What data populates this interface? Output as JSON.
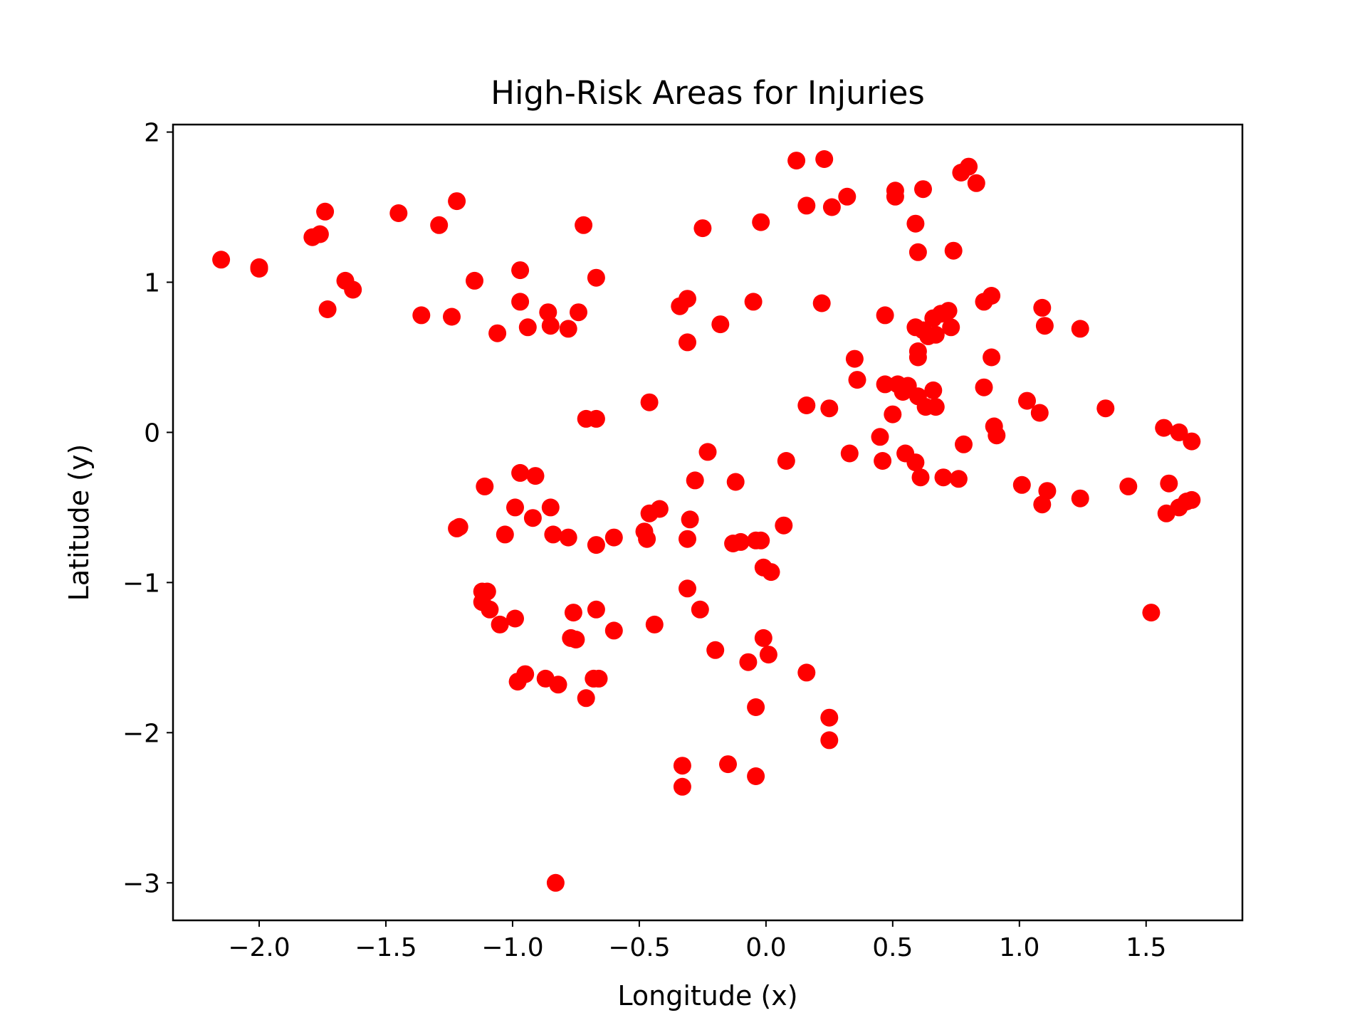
{
  "chart_data": {
    "type": "scatter",
    "title": "High-Risk Areas for Injuries",
    "xlabel": "Longitude (x)",
    "ylabel": "Latitude (y)",
    "xlim": [
      -2.34,
      1.88
    ],
    "ylim": [
      -3.25,
      2.05
    ],
    "xticks": [
      -2.0,
      -1.5,
      -1.0,
      -0.5,
      0.0,
      0.5,
      1.0,
      1.5
    ],
    "xtick_labels": [
      "−2.0",
      "−1.5",
      "−1.0",
      "−0.5",
      "0.0",
      "0.5",
      "1.0",
      "1.5"
    ],
    "yticks": [
      2,
      1,
      0,
      -1,
      -2,
      -3
    ],
    "ytick_labels": [
      "2",
      "1",
      "0",
      "−1",
      "−2",
      "−3"
    ],
    "grid": false,
    "marker_color": "#ff0000",
    "points": [
      [
        -2.15,
        1.15
      ],
      [
        -2.0,
        1.1
      ],
      [
        -2.0,
        1.09
      ],
      [
        -1.79,
        1.3
      ],
      [
        -1.76,
        1.32
      ],
      [
        -1.74,
        1.47
      ],
      [
        -1.73,
        0.82
      ],
      [
        -1.66,
        1.01
      ],
      [
        -1.63,
        0.95
      ],
      [
        -1.45,
        1.46
      ],
      [
        -1.36,
        0.78
      ],
      [
        -1.29,
        1.38
      ],
      [
        -1.24,
        0.77
      ],
      [
        -1.22,
        1.54
      ],
      [
        -1.15,
        1.01
      ],
      [
        -1.06,
        0.66
      ],
      [
        -0.97,
        1.08
      ],
      [
        -0.97,
        0.87
      ],
      [
        -0.94,
        0.7
      ],
      [
        -0.86,
        0.8
      ],
      [
        -0.85,
        0.71
      ],
      [
        -0.78,
        0.69
      ],
      [
        -0.74,
        0.8
      ],
      [
        -0.72,
        1.38
      ],
      [
        -0.67,
        1.03
      ],
      [
        -0.71,
        0.09
      ],
      [
        -0.67,
        0.09
      ],
      [
        -0.46,
        0.2
      ],
      [
        -0.34,
        0.84
      ],
      [
        -0.31,
        0.89
      ],
      [
        -0.31,
        0.6
      ],
      [
        -0.25,
        1.36
      ],
      [
        -0.18,
        0.72
      ],
      [
        -0.05,
        0.87
      ],
      [
        -0.02,
        1.4
      ],
      [
        0.12,
        1.81
      ],
      [
        0.16,
        1.51
      ],
      [
        0.23,
        1.82
      ],
      [
        0.26,
        1.5
      ],
      [
        0.32,
        1.57
      ],
      [
        0.22,
        0.86
      ],
      [
        0.51,
        1.61
      ],
      [
        0.51,
        1.57
      ],
      [
        0.62,
        1.62
      ],
      [
        0.59,
        1.39
      ],
      [
        0.6,
        1.2
      ],
      [
        0.74,
        1.21
      ],
      [
        0.77,
        1.73
      ],
      [
        0.8,
        1.77
      ],
      [
        0.83,
        1.66
      ],
      [
        0.47,
        0.78
      ],
      [
        0.59,
        0.7
      ],
      [
        0.62,
        0.68
      ],
      [
        0.66,
        0.76
      ],
      [
        0.69,
        0.79
      ],
      [
        0.72,
        0.81
      ],
      [
        0.64,
        0.64
      ],
      [
        0.67,
        0.65
      ],
      [
        0.73,
        0.7
      ],
      [
        0.6,
        0.54
      ],
      [
        0.6,
        0.5
      ],
      [
        0.86,
        0.87
      ],
      [
        0.89,
        0.91
      ],
      [
        1.09,
        0.83
      ],
      [
        1.1,
        0.71
      ],
      [
        1.24,
        0.69
      ],
      [
        0.35,
        0.49
      ],
      [
        0.36,
        0.35
      ],
      [
        0.47,
        0.32
      ],
      [
        0.52,
        0.32
      ],
      [
        0.54,
        0.27
      ],
      [
        0.56,
        0.31
      ],
      [
        0.6,
        0.24
      ],
      [
        0.63,
        0.17
      ],
      [
        0.66,
        0.28
      ],
      [
        0.67,
        0.17
      ],
      [
        0.5,
        0.12
      ],
      [
        0.16,
        0.18
      ],
      [
        0.25,
        0.16
      ],
      [
        0.86,
        0.3
      ],
      [
        0.89,
        0.5
      ],
      [
        1.03,
        0.21
      ],
      [
        1.08,
        0.13
      ],
      [
        1.34,
        0.16
      ],
      [
        0.9,
        0.04
      ],
      [
        0.91,
        -0.02
      ],
      [
        0.78,
        -0.08
      ],
      [
        0.45,
        -0.03
      ],
      [
        0.46,
        -0.19
      ],
      [
        0.55,
        -0.14
      ],
      [
        0.59,
        -0.2
      ],
      [
        0.61,
        -0.3
      ],
      [
        0.7,
        -0.3
      ],
      [
        0.76,
        -0.31
      ],
      [
        0.33,
        -0.14
      ],
      [
        0.08,
        -0.19
      ],
      [
        1.57,
        0.03
      ],
      [
        1.63,
        0.0
      ],
      [
        1.68,
        -0.06
      ],
      [
        1.01,
        -0.35
      ],
      [
        1.11,
        -0.39
      ],
      [
        1.09,
        -0.48
      ],
      [
        1.24,
        -0.44
      ],
      [
        1.43,
        -0.36
      ],
      [
        1.59,
        -0.34
      ],
      [
        1.58,
        -0.54
      ],
      [
        1.63,
        -0.5
      ],
      [
        1.66,
        -0.46
      ],
      [
        1.68,
        -0.45
      ],
      [
        1.52,
        -1.2
      ],
      [
        -0.97,
        -0.27
      ],
      [
        -0.91,
        -0.29
      ],
      [
        -1.11,
        -0.36
      ],
      [
        -0.99,
        -0.5
      ],
      [
        -0.85,
        -0.5
      ],
      [
        -0.92,
        -0.57
      ],
      [
        -1.22,
        -0.64
      ],
      [
        -1.21,
        -0.63
      ],
      [
        -1.03,
        -0.68
      ],
      [
        -0.84,
        -0.68
      ],
      [
        -0.78,
        -0.7
      ],
      [
        -0.67,
        -0.75
      ],
      [
        -0.6,
        -0.7
      ],
      [
        -0.48,
        -0.66
      ],
      [
        -0.47,
        -0.71
      ],
      [
        -0.46,
        -0.54
      ],
      [
        -0.42,
        -0.51
      ],
      [
        -0.3,
        -0.58
      ],
      [
        -0.31,
        -0.71
      ],
      [
        -0.28,
        -0.32
      ],
      [
        -0.23,
        -0.13
      ],
      [
        -0.12,
        -0.33
      ],
      [
        -0.13,
        -0.74
      ],
      [
        -0.1,
        -0.73
      ],
      [
        -0.04,
        -0.72
      ],
      [
        -0.02,
        -0.72
      ],
      [
        0.07,
        -0.62
      ],
      [
        -0.01,
        -0.9
      ],
      [
        0.02,
        -0.93
      ],
      [
        -1.12,
        -1.06
      ],
      [
        -1.1,
        -1.06
      ],
      [
        -1.12,
        -1.13
      ],
      [
        -1.09,
        -1.18
      ],
      [
        -1.05,
        -1.28
      ],
      [
        -0.99,
        -1.24
      ],
      [
        -0.76,
        -1.2
      ],
      [
        -0.67,
        -1.18
      ],
      [
        -0.6,
        -1.32
      ],
      [
        -0.44,
        -1.28
      ],
      [
        -0.31,
        -1.04
      ],
      [
        -0.26,
        -1.18
      ],
      [
        -0.77,
        -1.37
      ],
      [
        -0.75,
        -1.38
      ],
      [
        -0.2,
        -1.45
      ],
      [
        -0.07,
        -1.53
      ],
      [
        -0.01,
        -1.37
      ],
      [
        0.01,
        -1.48
      ],
      [
        0.16,
        -1.6
      ],
      [
        -0.98,
        -1.66
      ],
      [
        -0.95,
        -1.61
      ],
      [
        -0.87,
        -1.64
      ],
      [
        -0.82,
        -1.68
      ],
      [
        -0.68,
        -1.64
      ],
      [
        -0.66,
        -1.64
      ],
      [
        -0.71,
        -1.77
      ],
      [
        -0.04,
        -1.83
      ],
      [
        0.25,
        -1.9
      ],
      [
        0.25,
        -2.05
      ],
      [
        -0.33,
        -2.22
      ],
      [
        -0.15,
        -2.21
      ],
      [
        -0.04,
        -2.29
      ],
      [
        -0.33,
        -2.36
      ],
      [
        -0.83,
        -3.0
      ]
    ]
  }
}
